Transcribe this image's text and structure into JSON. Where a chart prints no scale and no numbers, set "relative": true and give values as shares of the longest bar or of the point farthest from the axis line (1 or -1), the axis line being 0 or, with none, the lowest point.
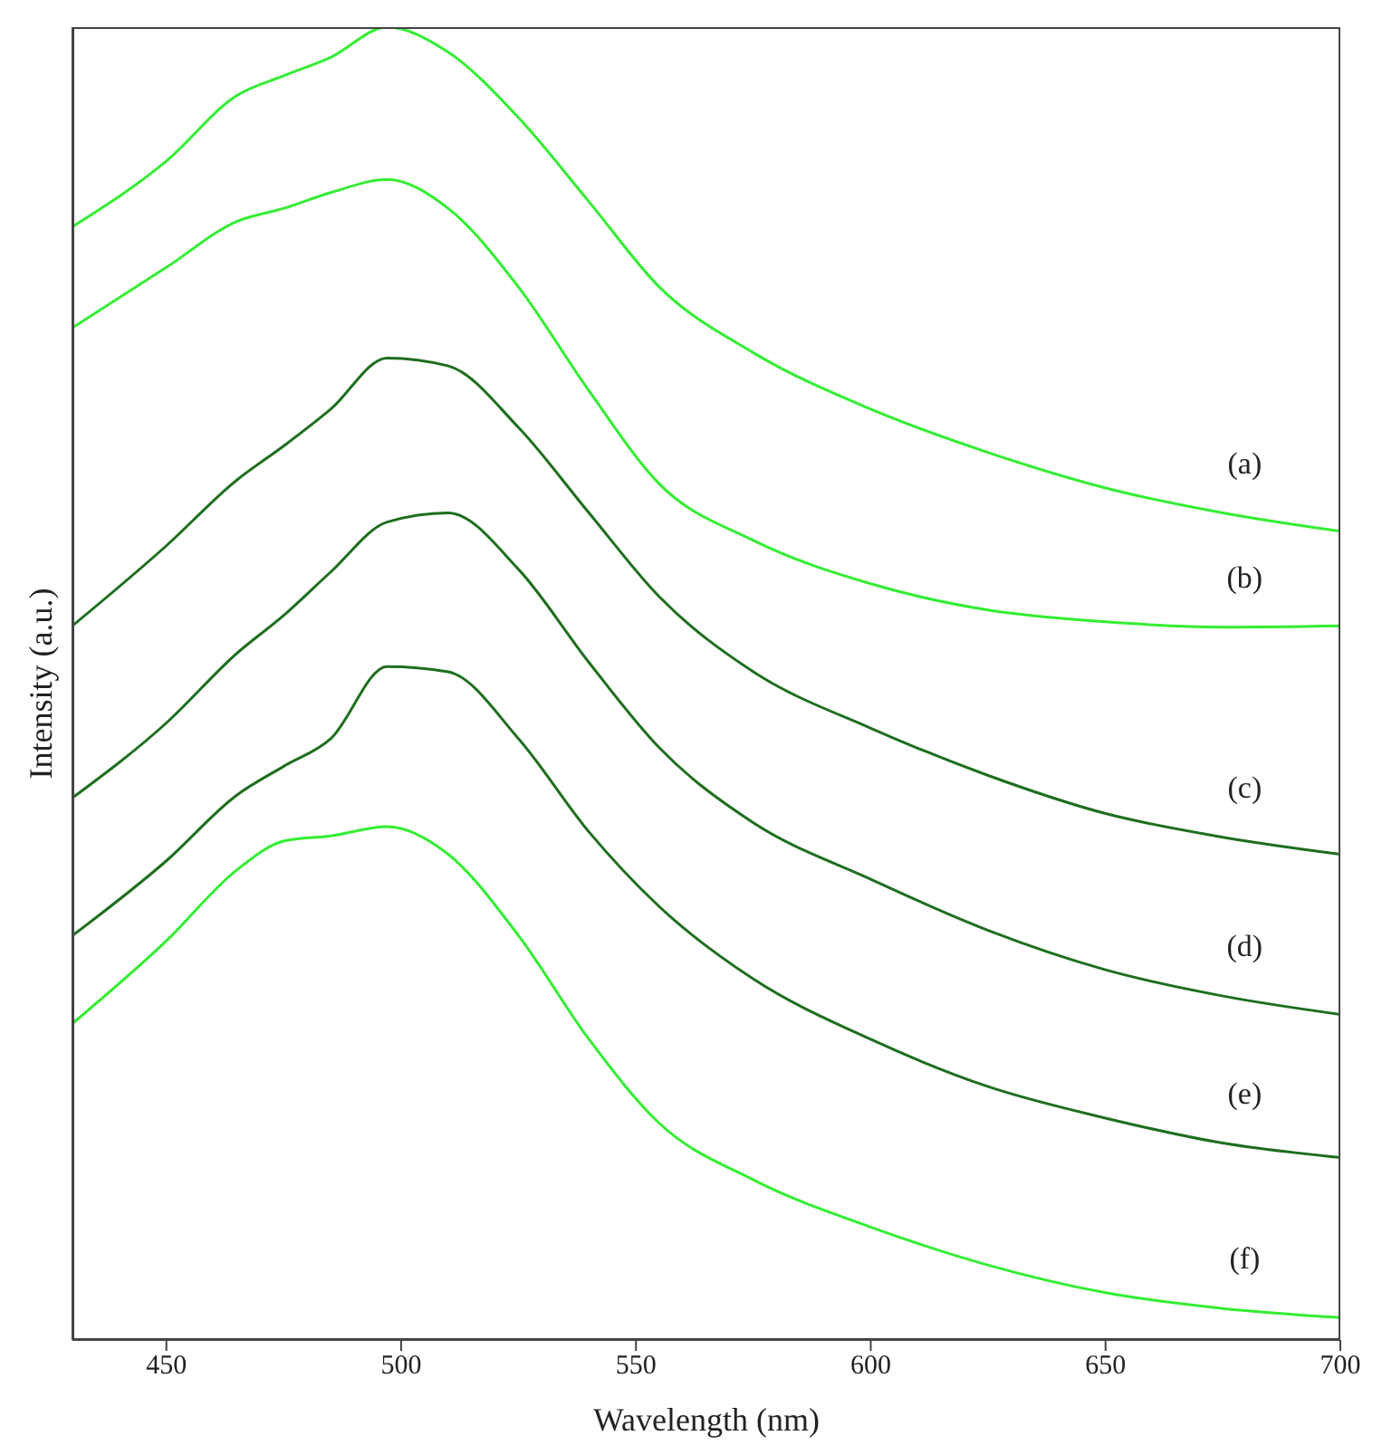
{
  "chart_data": {
    "type": "line",
    "xlabel": "Wavelength (nm)",
    "ylabel": "Intensity (a.u.)",
    "relative": true,
    "legend": false,
    "grid": false,
    "marker": "none",
    "line_style": "solid",
    "xlim": [
      430,
      700
    ],
    "xticks": [
      450,
      500,
      550,
      600,
      650,
      700
    ],
    "x": [
      430,
      450,
      465,
      475,
      485,
      497,
      510,
      525,
      540,
      555,
      575,
      600,
      625,
      650,
      675,
      700
    ],
    "series": [
      {
        "name": "(a)",
        "color": "#33ee33",
        "values": [
          0.848,
          0.898,
          0.948,
          0.963,
          0.977,
          1,
          0.981,
          0.931,
          0.867,
          0.802,
          0.752,
          0.709,
          0.676,
          0.649,
          0.63,
          0.616
        ]
      },
      {
        "name": "(b)",
        "color": "#33ee33",
        "values": [
          0.771,
          0.817,
          0.852,
          0.862,
          0.874,
          0.884,
          0.862,
          0.802,
          0.723,
          0.652,
          0.609,
          0.576,
          0.556,
          0.547,
          0.543,
          0.544
        ]
      },
      {
        "name": "(c)",
        "color": "#1e6e1e",
        "values": [
          0.544,
          0.605,
          0.655,
          0.681,
          0.709,
          0.748,
          0.742,
          0.695,
          0.63,
          0.566,
          0.509,
          0.466,
          0.43,
          0.401,
          0.383,
          0.37
        ]
      },
      {
        "name": "(d)",
        "color": "#1e6e1e",
        "values": [
          0.413,
          0.47,
          0.523,
          0.552,
          0.585,
          0.623,
          0.63,
          0.587,
          0.516,
          0.451,
          0.394,
          0.351,
          0.312,
          0.282,
          0.262,
          0.248
        ]
      },
      {
        "name": "(e)",
        "color": "#1e6e1e",
        "values": [
          0.308,
          0.365,
          0.415,
          0.437,
          0.458,
          0.513,
          0.509,
          0.458,
          0.387,
          0.33,
          0.275,
          0.229,
          0.193,
          0.169,
          0.15,
          0.139
        ]
      },
      {
        "name": "(f)",
        "color": "#33ee33",
        "values": [
          0.241,
          0.304,
          0.358,
          0.38,
          0.384,
          0.391,
          0.37,
          0.308,
          0.229,
          0.165,
          0.122,
          0.086,
          0.057,
          0.036,
          0.024,
          0.017
        ]
      }
    ]
  }
}
